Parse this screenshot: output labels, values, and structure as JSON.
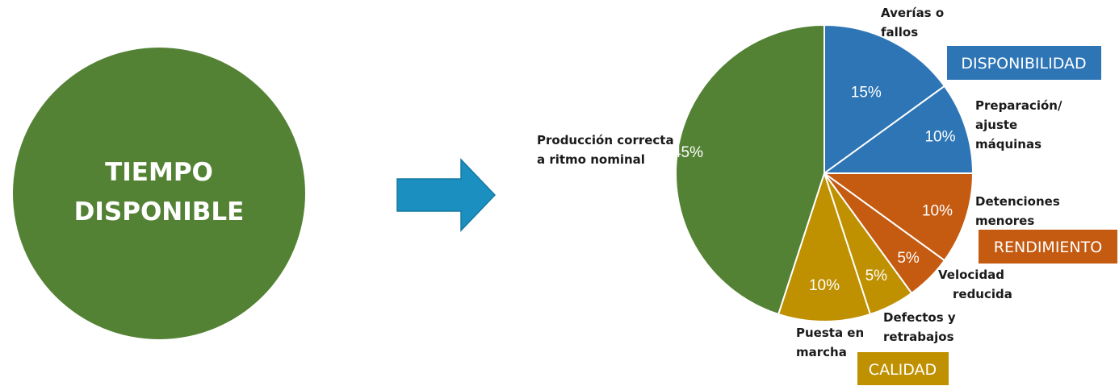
{
  "left_circle": {
    "line1": "TIEMPO",
    "line2": "DISPONIBLE",
    "color": "#548235"
  },
  "arrow": {
    "icon": "right-arrow-icon",
    "color": "#1a8fc0"
  },
  "chart_data": {
    "type": "pie",
    "slices": [
      {
        "id": "averias",
        "label_lines": [
          "Averías o",
          "fallos"
        ],
        "value": 15,
        "display": "15%",
        "color": "#2e75b6"
      },
      {
        "id": "preparacion",
        "label_lines": [
          "Preparación/",
          "ajuste",
          "máquinas"
        ],
        "value": 10,
        "display": "10%",
        "color": "#2e75b6"
      },
      {
        "id": "detenciones",
        "label_lines": [
          "Detenciones",
          "menores"
        ],
        "value": 10,
        "display": "10%",
        "color": "#c55a11"
      },
      {
        "id": "velocidad",
        "label_lines": [
          "Velocidad",
          "reducida"
        ],
        "value": 5,
        "display": "5%",
        "color": "#c55a11"
      },
      {
        "id": "defectos",
        "label_lines": [
          "Defectos y",
          "retrabajos"
        ],
        "value": 5,
        "display": "5%",
        "color": "#bf9000"
      },
      {
        "id": "puesta",
        "label_lines": [
          "Puesta en",
          "marcha"
        ],
        "value": 10,
        "display": "10%",
        "color": "#bf9000"
      },
      {
        "id": "produccion",
        "label_lines": [
          "Producción correcta",
          "a ritmo nominal"
        ],
        "value": 45,
        "display": "45%",
        "color": "#548235"
      }
    ],
    "groups": [
      {
        "id": "disponibilidad",
        "label": "DISPONIBILIDAD",
        "color": "#2e75b6"
      },
      {
        "id": "rendimiento",
        "label": "RENDIMIENTO",
        "color": "#c55a11"
      },
      {
        "id": "calidad",
        "label": "CALIDAD",
        "color": "#bf9000"
      }
    ]
  }
}
